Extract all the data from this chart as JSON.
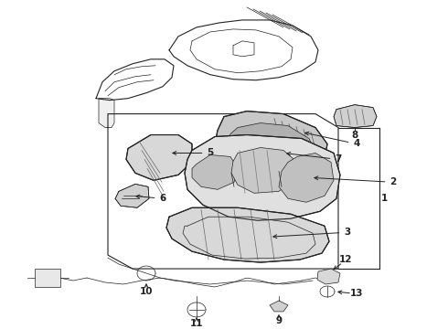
{
  "bg_color": "#ffffff",
  "line_color": "#222222",
  "fill_light": "#f0f0f0",
  "fill_mid": "#e0e0e0",
  "fill_dark": "#cccccc"
}
